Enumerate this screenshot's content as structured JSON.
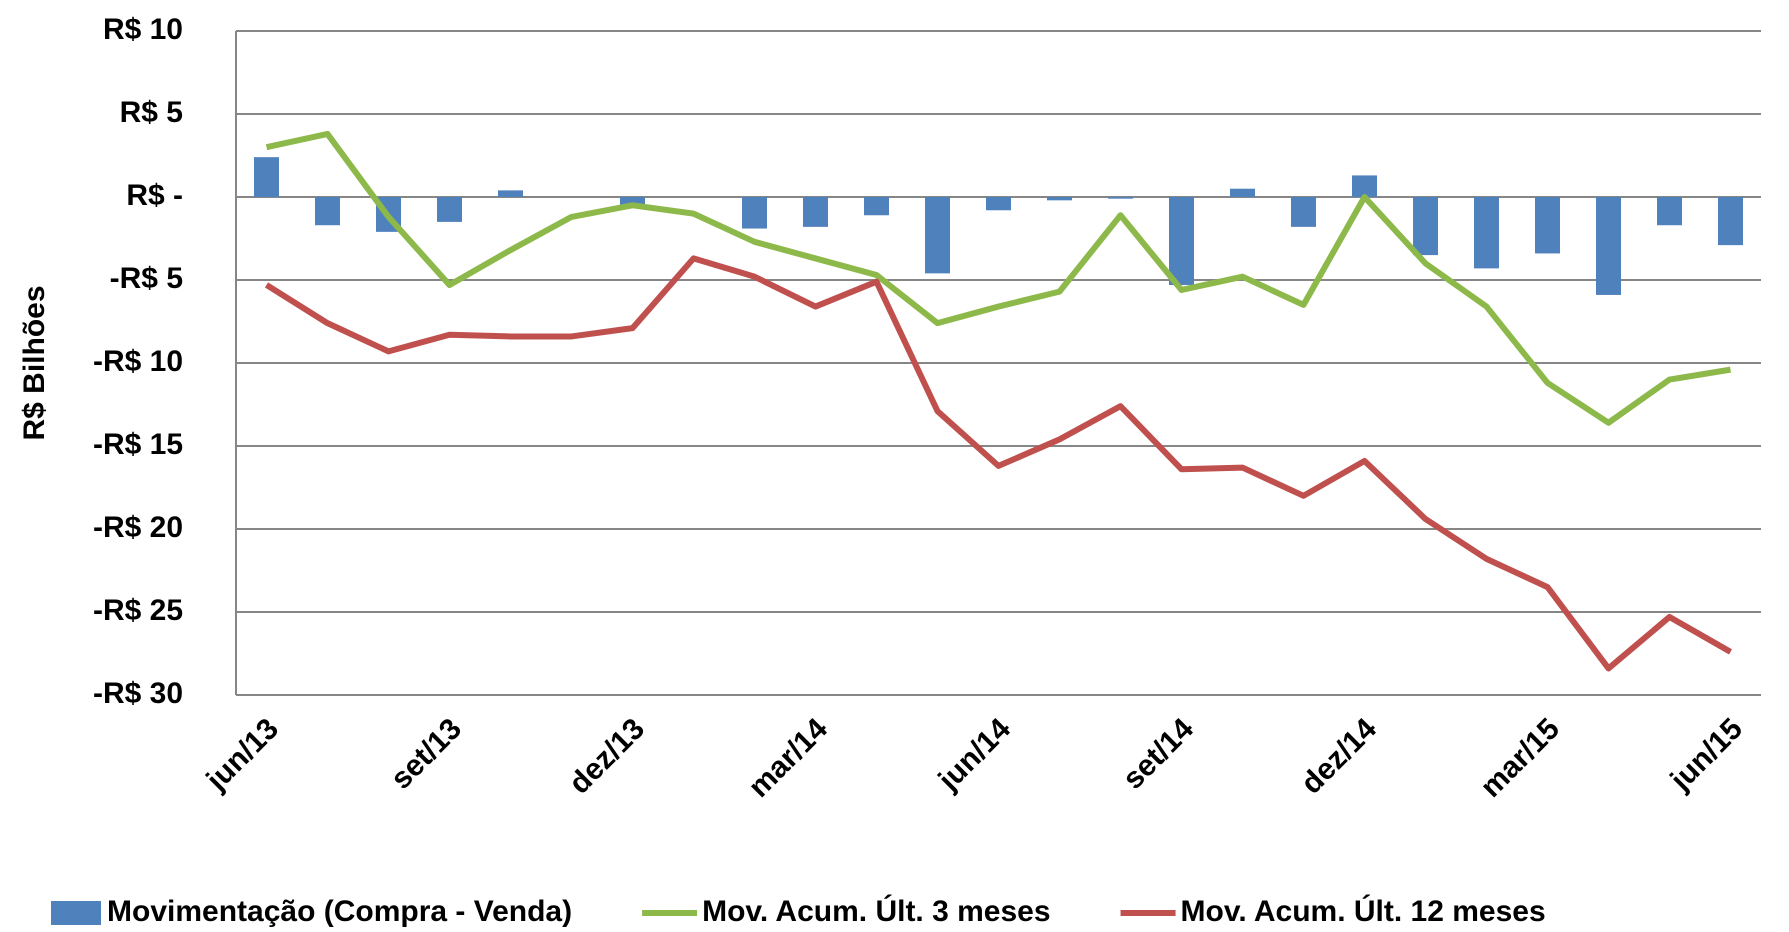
{
  "chart_data": {
    "type": "bar-line",
    "y_label": "R$ Bilhões",
    "categories": [
      "jun/13",
      null,
      null,
      "set/13",
      null,
      null,
      "dez/13",
      null,
      null,
      "mar/14",
      null,
      null,
      "jun/14",
      null,
      null,
      "set/14",
      null,
      null,
      "dez/14",
      null,
      null,
      "mar/15",
      null,
      null,
      "jun/15"
    ],
    "series": [
      {
        "name": "Movimentação (Compra - Venda)",
        "type": "bar",
        "color": "#4f81bd",
        "values": [
          2.4,
          -1.7,
          -2.1,
          -1.5,
          0.4,
          0,
          -0.5,
          0,
          -1.9,
          -1.8,
          -1.1,
          -4.6,
          -0.8,
          -0.2,
          -0.1,
          -5.3,
          0.5,
          -1.8,
          1.3,
          -3.5,
          -4.3,
          -3.4,
          -5.9,
          -1.7,
          -2.9
        ]
      },
      {
        "name": "Mov. Acum. Últ. 3 meses",
        "type": "line",
        "color": "#8db84a",
        "values": [
          3.0,
          3.8,
          -1.2,
          -5.3,
          -3.2,
          -1.2,
          -0.5,
          -1.0,
          -2.7,
          -3.7,
          -4.7,
          -7.6,
          -6.6,
          -5.7,
          -1.1,
          -5.6,
          -4.8,
          -6.5,
          0.0,
          -4.0,
          -6.6,
          -11.2,
          -13.6,
          -11.0,
          -10.4
        ]
      },
      {
        "name": "Mov. Acum. Últ. 12 meses",
        "type": "line",
        "color": "#c0504d",
        "values": [
          -5.3,
          -7.6,
          -9.3,
          -8.3,
          -8.4,
          -8.4,
          -7.9,
          -3.7,
          -4.8,
          -6.6,
          -5.1,
          -12.9,
          -16.2,
          -14.6,
          -12.6,
          -16.4,
          -16.3,
          -18.0,
          -15.9,
          -19.4,
          -21.8,
          -23.5,
          -28.4,
          -25.3,
          -27.4
        ]
      }
    ],
    "ylim": [
      -30,
      10
    ],
    "yticks": [
      {
        "value": -30,
        "label": "-R$ 30"
      },
      {
        "value": -25,
        "label": "-R$ 25"
      },
      {
        "value": -20,
        "label": "-R$ 20"
      },
      {
        "value": -15,
        "label": "-R$ 15"
      },
      {
        "value": -10,
        "label": "-R$ 10"
      },
      {
        "value": -5,
        "label": "-R$ 5"
      },
      {
        "value": 0,
        "label": "R$ -"
      },
      {
        "value": 5,
        "label": "R$ 5"
      },
      {
        "value": 10,
        "label": "R$ 10"
      }
    ],
    "grid": true,
    "legend": "bottom"
  }
}
